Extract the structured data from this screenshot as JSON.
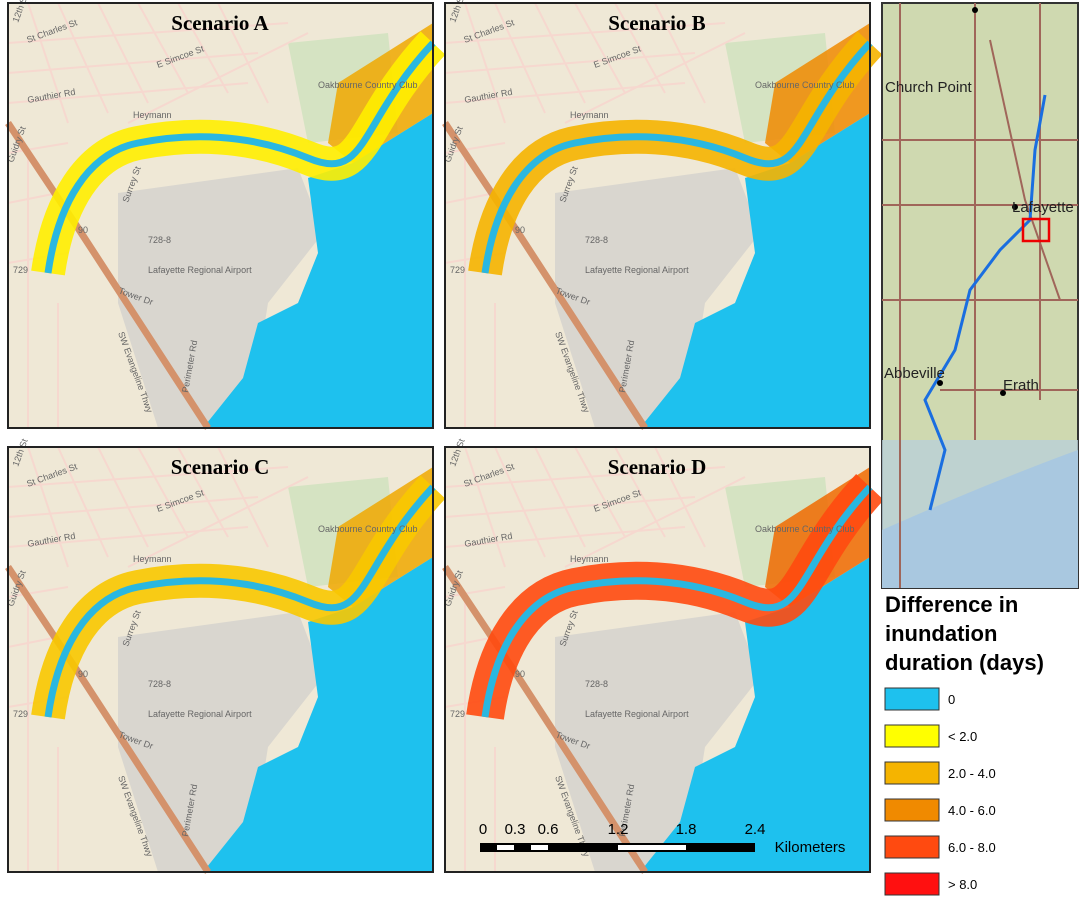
{
  "panels": [
    {
      "title": "Scenario A"
    },
    {
      "title": "Scenario B"
    },
    {
      "title": "Scenario C"
    },
    {
      "title": "Scenario D"
    }
  ],
  "map_labels": [
    "12th St",
    "St Charles St",
    "E Simcoe St",
    "Gauthier Rd",
    "Heymann",
    "Guidry St",
    "Surrey St",
    "728-8",
    "729",
    "90",
    "Lafayette Regional Airport",
    "Tower Dr",
    "SW Evangeline Thwy",
    "Perimeter Rd",
    "Oakbourne Country Club"
  ],
  "inset": {
    "labels": [
      "Church Point",
      "Lafayette",
      "Abbeville",
      "Erath"
    ]
  },
  "scale_bar": {
    "ticks": [
      "0",
      "0.3",
      "0.6",
      "1.2",
      "1.8",
      "2.4"
    ],
    "unit": "Kilometers"
  },
  "legend": {
    "title": [
      "Difference in",
      "inundation",
      "duration (days)"
    ],
    "items": [
      {
        "label": "0",
        "color": "#1ec1ee"
      },
      {
        "label": "< 2.0",
        "color": "#ffff00"
      },
      {
        "label": "2.0 - 4.0",
        "color": "#f5b400"
      },
      {
        "label": "4.0 - 6.0",
        "color": "#f08a00"
      },
      {
        "label": "6.0 - 8.0",
        "color": "#ff4a10"
      },
      {
        "label": "> 8.0",
        "color": "#ff1010"
      }
    ]
  }
}
